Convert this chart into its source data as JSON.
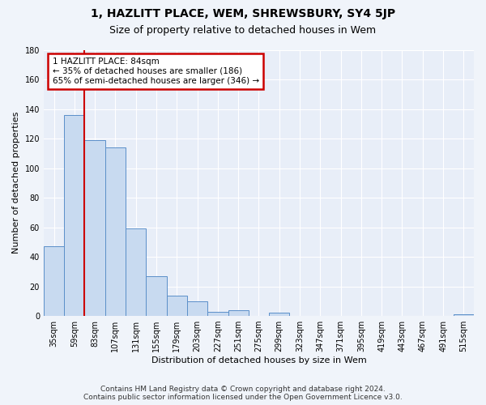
{
  "title": "1, HAZLITT PLACE, WEM, SHREWSBURY, SY4 5JP",
  "subtitle": "Size of property relative to detached houses in Wem",
  "xlabel": "Distribution of detached houses by size in Wem",
  "ylabel": "Number of detached properties",
  "categories": [
    "35sqm",
    "59sqm",
    "83sqm",
    "107sqm",
    "131sqm",
    "155sqm",
    "179sqm",
    "203sqm",
    "227sqm",
    "251sqm",
    "275sqm",
    "299sqm",
    "323sqm",
    "347sqm",
    "371sqm",
    "395sqm",
    "419sqm",
    "443sqm",
    "467sqm",
    "491sqm",
    "515sqm"
  ],
  "values": [
    47,
    136,
    119,
    114,
    59,
    27,
    14,
    10,
    3,
    4,
    0,
    2,
    0,
    0,
    0,
    0,
    0,
    0,
    0,
    0,
    1
  ],
  "bar_color": "#c8daf0",
  "bar_edge_color": "#5b8fc9",
  "vline_color": "#cc0000",
  "vline_bin_index": 2,
  "annotation_line1": "1 HAZLITT PLACE: 84sqm",
  "annotation_line2": "← 35% of detached houses are smaller (186)",
  "annotation_line3": "65% of semi-detached houses are larger (346) →",
  "annotation_box_color": "#cc0000",
  "ylim": [
    0,
    180
  ],
  "yticks": [
    0,
    20,
    40,
    60,
    80,
    100,
    120,
    140,
    160,
    180
  ],
  "footer": "Contains HM Land Registry data © Crown copyright and database right 2024.\nContains public sector information licensed under the Open Government Licence v3.0.",
  "bg_color": "#f0f4fa",
  "plot_bg_color": "#e8eef8",
  "grid_color": "#ffffff",
  "title_fontsize": 10,
  "subtitle_fontsize": 9,
  "tick_fontsize": 7,
  "label_fontsize": 8,
  "footer_fontsize": 6.5
}
